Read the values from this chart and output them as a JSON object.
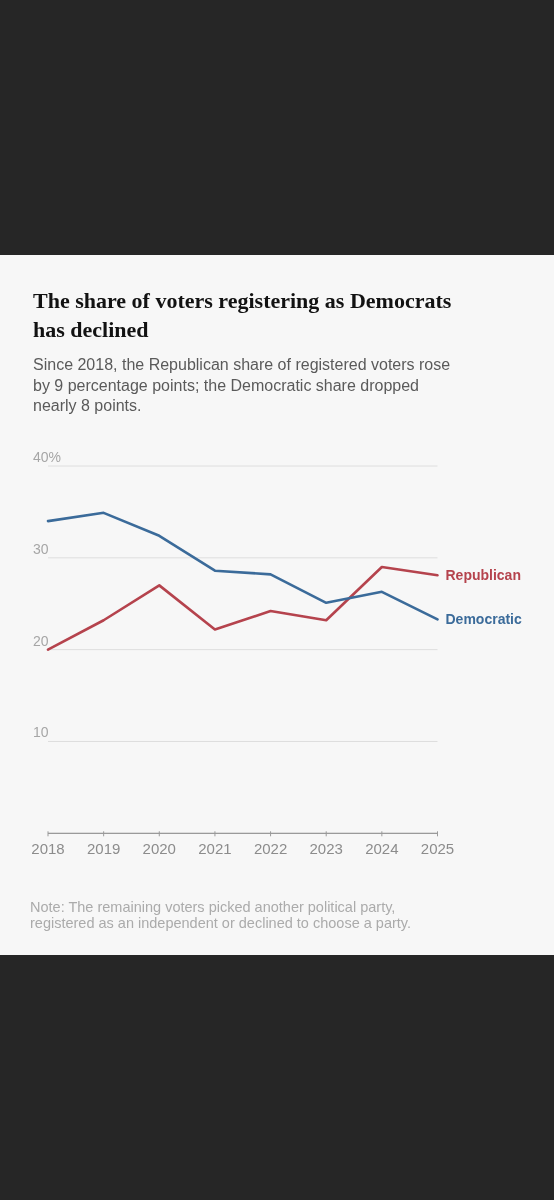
{
  "chart_data": {
    "type": "line",
    "title": "The share of voters registering as Democrats has declined",
    "subtitle": "Since 2018, the Republican share of registered voters rose by 9 percentage points; the Democratic share dropped nearly 8 points.",
    "x": [
      2018,
      2019,
      2020,
      2021,
      2022,
      2023,
      2024,
      2025
    ],
    "series": [
      {
        "name": "Republican",
        "color": "#b5434d",
        "values": [
          20.0,
          23.2,
          27.0,
          22.2,
          24.2,
          23.2,
          29.0,
          28.1
        ]
      },
      {
        "name": "Democratic",
        "color": "#3b6b9a",
        "values": [
          34.0,
          34.9,
          32.4,
          28.6,
          28.2,
          25.1,
          26.3,
          23.3
        ]
      }
    ],
    "xlim": [
      2018,
      2025
    ],
    "xticks": [
      2018,
      2019,
      2020,
      2021,
      2022,
      2023,
      2024,
      2025
    ],
    "ylim": [
      0,
      40
    ],
    "yticks": [
      {
        "value": 0,
        "label": null
      },
      10,
      20,
      30,
      {
        "value": 40,
        "label": "40%"
      }
    ],
    "grid": "y",
    "annotations": [
      "Note: The remaining voters picked another political party, registered as an independent or declined to choose a party."
    ]
  }
}
